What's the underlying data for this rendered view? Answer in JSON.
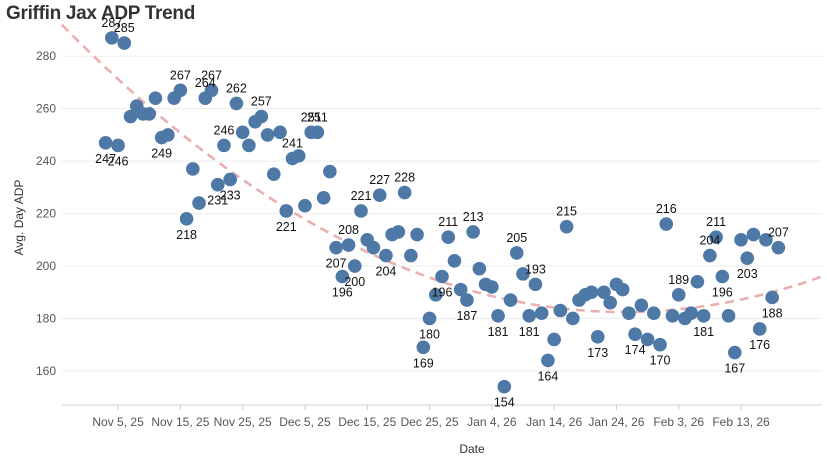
{
  "chart_data": {
    "type": "scatter",
    "title": "Griffin Jax ADP Trend",
    "xlabel": "Date",
    "ylabel": "Avg. Day ADP",
    "x_axis": {
      "min": "2025-10-27",
      "max": "2026-02-26",
      "ticks": [
        "2025-11-05",
        "2025-11-15",
        "2025-11-25",
        "2025-12-05",
        "2025-12-15",
        "2025-12-25",
        "2026-01-04",
        "2026-01-14",
        "2026-01-24",
        "2026-02-03",
        "2026-02-13"
      ],
      "tick_labels": [
        "Nov 5, 25",
        "Nov 15, 25",
        "Nov 25, 25",
        "Dec 5, 25",
        "Dec 15, 25",
        "Dec 25, 25",
        "Jan 4, 26",
        "Jan 14, 26",
        "Jan 24, 26",
        "Feb 3, 26",
        "Feb 13, 26"
      ]
    },
    "y_axis": {
      "min": 147,
      "max": 290,
      "ticks": [
        160,
        180,
        200,
        220,
        240,
        260,
        280
      ]
    },
    "grid": true,
    "point_color": "#4e79a7",
    "trend_color": "#e8a6a6",
    "trend_line": {
      "style": "dashed",
      "kind": "quadratic",
      "points": [
        [
          "2025-10-27",
          292
        ],
        [
          "2026-02-26",
          196
        ],
        [
          "2026-02-08",
          185
        ],
        [
          "2026-01-12",
          183
        ],
        [
          "2025-12-10",
          216
        ]
      ]
    },
    "points": [
      [
        "2025-11-03",
        247,
        "247"
      ],
      [
        "2025-11-04",
        287,
        "287"
      ],
      [
        "2025-11-05",
        246,
        "246"
      ],
      [
        "2025-11-06",
        285,
        "285"
      ],
      [
        "2025-11-07",
        257,
        ""
      ],
      [
        "2025-11-08",
        261,
        ""
      ],
      [
        "2025-11-09",
        258,
        ""
      ],
      [
        "2025-11-10",
        258,
        ""
      ],
      [
        "2025-11-11",
        264,
        ""
      ],
      [
        "2025-11-12",
        249,
        "249"
      ],
      [
        "2025-11-13",
        250,
        ""
      ],
      [
        "2025-11-14",
        264,
        ""
      ],
      [
        "2025-11-15",
        267,
        "267"
      ],
      [
        "2025-11-16",
        218,
        "218"
      ],
      [
        "2025-11-17",
        237,
        ""
      ],
      [
        "2025-11-18",
        224,
        ""
      ],
      [
        "2025-11-19",
        264,
        "264"
      ],
      [
        "2025-11-20",
        267,
        "267"
      ],
      [
        "2025-11-21",
        231,
        "231"
      ],
      [
        "2025-11-22",
        246,
        "246"
      ],
      [
        "2025-11-23",
        233,
        "233"
      ],
      [
        "2025-11-24",
        262,
        "262"
      ],
      [
        "2025-11-25",
        251,
        ""
      ],
      [
        "2025-11-26",
        246,
        ""
      ],
      [
        "2025-11-27",
        255,
        ""
      ],
      [
        "2025-11-28",
        257,
        "257"
      ],
      [
        "2025-11-29",
        250,
        ""
      ],
      [
        "2025-11-30",
        235,
        ""
      ],
      [
        "2025-12-01",
        251,
        ""
      ],
      [
        "2025-12-02",
        221,
        "221"
      ],
      [
        "2025-12-03",
        241,
        "241"
      ],
      [
        "2025-12-04",
        242,
        ""
      ],
      [
        "2025-12-05",
        223,
        ""
      ],
      [
        "2025-12-06",
        251,
        "251"
      ],
      [
        "2025-12-07",
        251,
        "251"
      ],
      [
        "2025-12-08",
        226,
        ""
      ],
      [
        "2025-12-09",
        236,
        ""
      ],
      [
        "2025-12-10",
        207,
        "207"
      ],
      [
        "2025-12-11",
        196,
        "196"
      ],
      [
        "2025-12-12",
        208,
        "208"
      ],
      [
        "2025-12-13",
        200,
        "200"
      ],
      [
        "2025-12-14",
        221,
        "221"
      ],
      [
        "2025-12-15",
        210,
        ""
      ],
      [
        "2025-12-16",
        207,
        ""
      ],
      [
        "2025-12-17",
        227,
        "227"
      ],
      [
        "2025-12-18",
        204,
        "204"
      ],
      [
        "2025-12-19",
        212,
        ""
      ],
      [
        "2025-12-20",
        213,
        ""
      ],
      [
        "2025-12-21",
        228,
        "228"
      ],
      [
        "2025-12-22",
        204,
        ""
      ],
      [
        "2025-12-23",
        212,
        ""
      ],
      [
        "2025-12-24",
        169,
        "169"
      ],
      [
        "2025-12-25",
        180,
        "180"
      ],
      [
        "2025-12-26",
        189,
        ""
      ],
      [
        "2025-12-27",
        196,
        "196"
      ],
      [
        "2025-12-28",
        211,
        "211"
      ],
      [
        "2025-12-29",
        202,
        ""
      ],
      [
        "2025-12-30",
        191,
        ""
      ],
      [
        "2025-12-31",
        187,
        "187"
      ],
      [
        "2026-01-01",
        213,
        "213"
      ],
      [
        "2026-01-02",
        199,
        ""
      ],
      [
        "2026-01-03",
        193,
        ""
      ],
      [
        "2026-01-04",
        192,
        ""
      ],
      [
        "2026-01-05",
        181,
        "181"
      ],
      [
        "2026-01-06",
        154,
        "154"
      ],
      [
        "2026-01-07",
        187,
        ""
      ],
      [
        "2026-01-08",
        205,
        "205"
      ],
      [
        "2026-01-09",
        197,
        ""
      ],
      [
        "2026-01-10",
        181,
        "181"
      ],
      [
        "2026-01-11",
        193,
        "193"
      ],
      [
        "2026-01-12",
        182,
        ""
      ],
      [
        "2026-01-13",
        164,
        "164"
      ],
      [
        "2026-01-14",
        172,
        ""
      ],
      [
        "2026-01-15",
        183,
        ""
      ],
      [
        "2026-01-16",
        215,
        "215"
      ],
      [
        "2026-01-17",
        180,
        ""
      ],
      [
        "2026-01-18",
        187,
        ""
      ],
      [
        "2026-01-19",
        189,
        ""
      ],
      [
        "2026-01-20",
        190,
        ""
      ],
      [
        "2026-01-21",
        173,
        "173"
      ],
      [
        "2026-01-22",
        190,
        ""
      ],
      [
        "2026-01-23",
        186,
        ""
      ],
      [
        "2026-01-24",
        193,
        ""
      ],
      [
        "2026-01-25",
        191,
        ""
      ],
      [
        "2026-01-26",
        182,
        ""
      ],
      [
        "2026-01-27",
        174,
        "174"
      ],
      [
        "2026-01-28",
        185,
        ""
      ],
      [
        "2026-01-29",
        172,
        ""
      ],
      [
        "2026-01-30",
        182,
        ""
      ],
      [
        "2026-01-31",
        170,
        "170"
      ],
      [
        "2026-02-01",
        216,
        "216"
      ],
      [
        "2026-02-02",
        181,
        ""
      ],
      [
        "2026-02-03",
        189,
        "189"
      ],
      [
        "2026-02-04",
        180,
        ""
      ],
      [
        "2026-02-05",
        182,
        ""
      ],
      [
        "2026-02-06",
        194,
        ""
      ],
      [
        "2026-02-07",
        181,
        "181"
      ],
      [
        "2026-02-08",
        204,
        "204"
      ],
      [
        "2026-02-09",
        211,
        "211"
      ],
      [
        "2026-02-10",
        196,
        "196"
      ],
      [
        "2026-02-11",
        181,
        ""
      ],
      [
        "2026-02-12",
        167,
        "167"
      ],
      [
        "2026-02-13",
        210,
        ""
      ],
      [
        "2026-02-14",
        203,
        "203"
      ],
      [
        "2026-02-15",
        212,
        ""
      ],
      [
        "2026-02-16",
        176,
        "176"
      ],
      [
        "2026-02-17",
        210,
        ""
      ],
      [
        "2026-02-18",
        188,
        "188"
      ],
      [
        "2026-02-19",
        207,
        "207"
      ]
    ]
  }
}
